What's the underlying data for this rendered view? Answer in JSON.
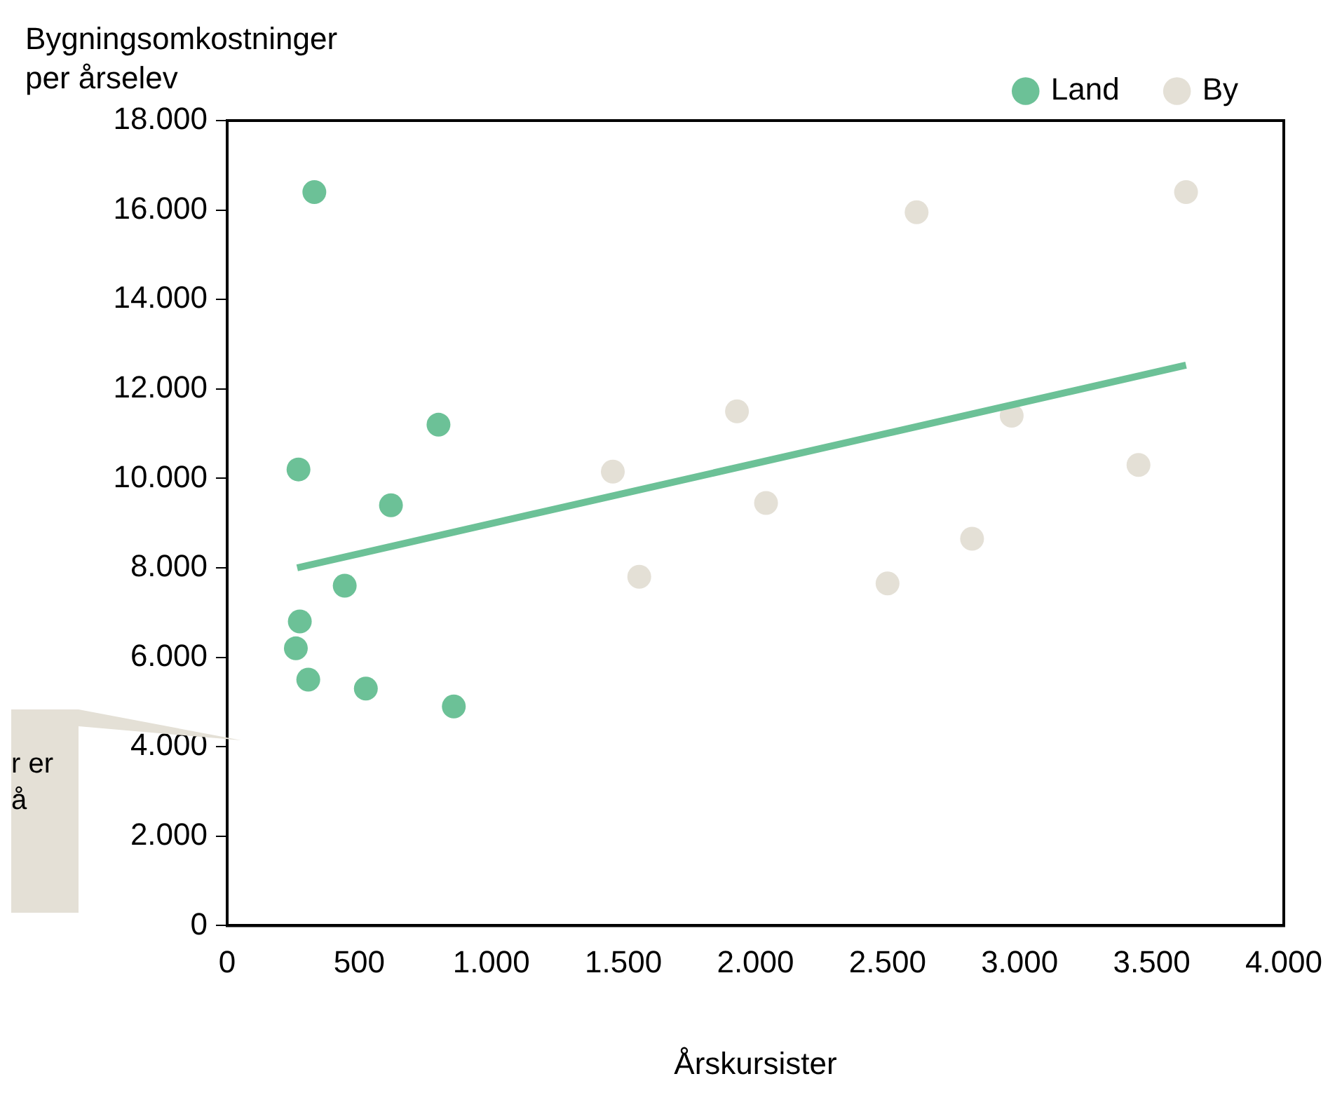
{
  "chart_data": {
    "type": "scatter",
    "ylabel": "Bygningsomkostninger per årselev",
    "xlabel": "Årskursister",
    "xlim": [
      0,
      4000
    ],
    "xticks": [
      {
        "value": 0,
        "label": "0"
      },
      {
        "value": 500,
        "label": "500"
      },
      {
        "value": 1000,
        "label": "1.000"
      },
      {
        "value": 1500,
        "label": "1.500"
      },
      {
        "value": 2000,
        "label": "2.000"
      },
      {
        "value": 2500,
        "label": "2.500"
      },
      {
        "value": 3000,
        "label": "3.000"
      },
      {
        "value": 3500,
        "label": "3.500"
      },
      {
        "value": 4000,
        "label": "4.000"
      }
    ],
    "ylim": [
      0,
      18000
    ],
    "yticks": [
      {
        "value": 0,
        "label": "0"
      },
      {
        "value": 2000,
        "label": "2.000"
      },
      {
        "value": 4000,
        "label": "4.000"
      },
      {
        "value": 6000,
        "label": "6.000"
      },
      {
        "value": 8000,
        "label": "8.000"
      },
      {
        "value": 10000,
        "label": "10.000"
      },
      {
        "value": 12000,
        "label": "12.000"
      },
      {
        "value": 14000,
        "label": "14.000"
      },
      {
        "value": 16000,
        "label": "16.000"
      },
      {
        "value": 18000,
        "label": "18.000"
      }
    ],
    "grid": false,
    "legend": "top right",
    "series": [
      {
        "name": "Land",
        "type": "scatter",
        "marker": "circle",
        "color": "#6cc197",
        "x": [
          330,
          270,
          800,
          620,
          445,
          275,
          260,
          307,
          525,
          858
        ],
        "values": [
          16400,
          10200,
          11200,
          9400,
          7600,
          6800,
          6200,
          5500,
          5300,
          4900
        ]
      },
      {
        "name": "By",
        "type": "scatter",
        "marker": "circle",
        "color": "#e4e0d6",
        "x": [
          3630,
          2610,
          1930,
          1460,
          2970,
          3450,
          2040,
          2820,
          1560,
          2500
        ],
        "values": [
          16400,
          15950,
          11500,
          10150,
          11400,
          10300,
          9450,
          8650,
          7800,
          7650
        ]
      },
      {
        "type": "line",
        "color": "#6cc197",
        "x": [
          265,
          3630
        ],
        "values": [
          8000,
          12530
        ]
      }
    ],
    "annotations": [
      "r er\nå"
    ]
  }
}
